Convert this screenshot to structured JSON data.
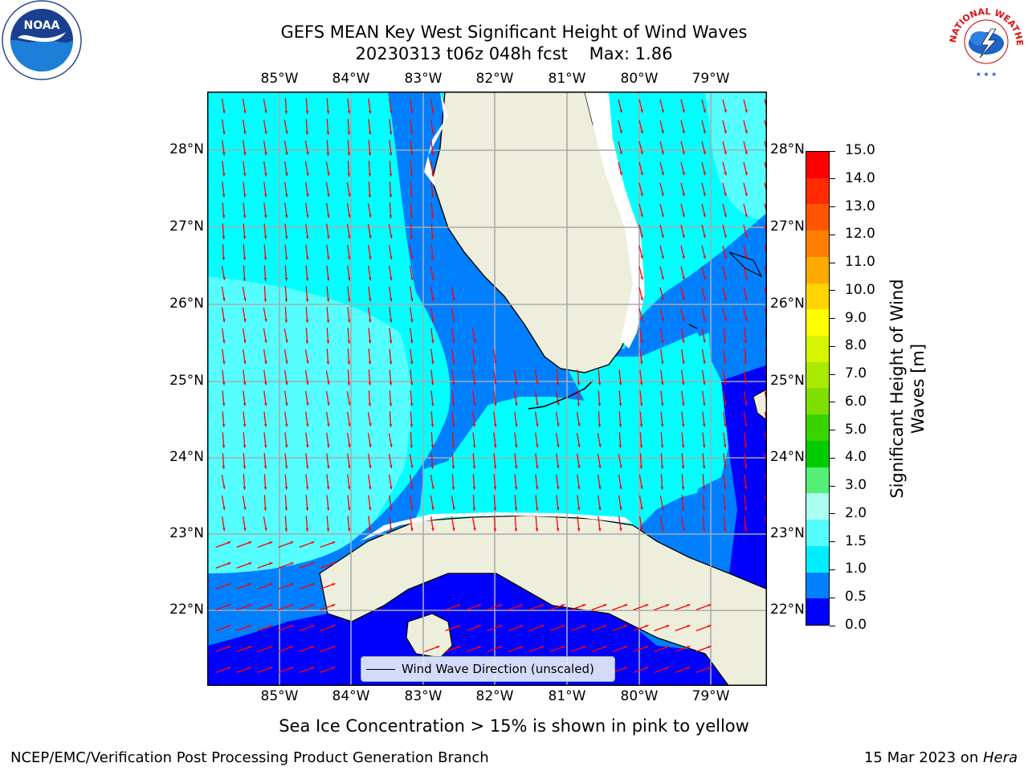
{
  "title": {
    "line1": "GEFS MEAN Key West Significant Height of Wind Waves",
    "line2": "20230313 t06z 048h fcst    Max: 1.86"
  },
  "axes": {
    "lon_labels": [
      "85°W",
      "84°W",
      "83°W",
      "82°W",
      "81°W",
      "80°W",
      "79°W"
    ],
    "lat_labels": [
      "28°N",
      "27°N",
      "26°N",
      "25°N",
      "24°N",
      "23°N",
      "22°N"
    ]
  },
  "legend": {
    "label": "Wind Wave Direction (unscaled)"
  },
  "colorbar": {
    "title_line1": "Significant Height of Wind",
    "title_line2": "Waves [m]",
    "ticks": [
      "15.0",
      "14.0",
      "13.0",
      "12.0",
      "11.0",
      "10.0",
      "9.0",
      "8.0",
      "7.0",
      "6.0",
      "5.0",
      "4.0",
      "3.0",
      "2.0",
      "1.5",
      "1.0",
      "0.5",
      "0.0"
    ],
    "colors": [
      "#ff0000",
      "#ff2a00",
      "#ff5500",
      "#ff7f00",
      "#ffaa00",
      "#ffd400",
      "#ffff00",
      "#d6f500",
      "#aaea00",
      "#7fdf00",
      "#39d400",
      "#00cc00",
      "#55ee77",
      "#aafff0",
      "#55ffff",
      "#00eeff",
      "#0080ff",
      "#0000ff"
    ]
  },
  "caption": "Sea Ice Concentration > 15% is shown in pink to yellow",
  "footer": {
    "left": "NCEP/EMC/Verification Post Processing Product Generation Branch",
    "date": "15 Mar 2023 on ",
    "machine": "Hera"
  },
  "logos": {
    "noaa_text": "NOAA",
    "nws_text": "NATIONAL WEATHER SERVICE"
  },
  "map_colors": {
    "land": "#eeeedc",
    "wave_0": "#0000ff",
    "wave_05": "#0080ff",
    "wave_10": "#00ffff",
    "wave_15": "#55ffff",
    "arrow": "#ff0000"
  }
}
